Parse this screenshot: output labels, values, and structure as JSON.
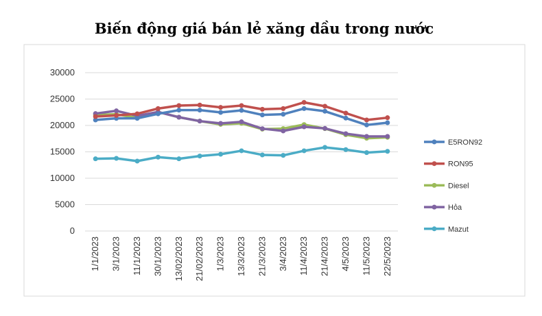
{
  "chart_data": {
    "type": "line",
    "title": "Biến động giá bán lẻ xăng dầu trong nước",
    "xlabel": "",
    "ylabel": "",
    "ylim": [
      0,
      30000
    ],
    "yticks": [
      0,
      5000,
      10000,
      15000,
      20000,
      25000,
      30000
    ],
    "grid": true,
    "legend_position": "right",
    "categories": [
      "1/1/2023",
      "3/1/2023",
      "11/1/2023",
      "30/1/2023",
      "13/02/2023",
      "21/02/2023",
      "1/3/2023",
      "13/3/2023",
      "21/3/2023",
      "3/4/2023",
      "11/4/2023",
      "21/4/2023",
      "4/5/2023",
      "11/5/2023",
      "22/5/2023"
    ],
    "series": [
      {
        "name": "E5RON92",
        "color": "#4f81bd",
        "values": [
          21040,
          21340,
          21340,
          22210,
          22900,
          22900,
          22470,
          22860,
          21990,
          22120,
          23200,
          22690,
          21390,
          20090,
          20520
        ]
      },
      {
        "name": "RON95",
        "color": "#c0504d",
        "values": [
          21690,
          21900,
          22210,
          23200,
          23770,
          23860,
          23420,
          23770,
          23070,
          23200,
          24370,
          23640,
          22340,
          21040,
          21470
        ]
      },
      {
        "name": "Diesel",
        "color": "#9bbb59",
        "values": [
          21990,
          22120,
          21430,
          22550,
          21560,
          20820,
          20200,
          20400,
          19300,
          19400,
          20170,
          19400,
          18240,
          17570,
          17750
        ]
      },
      {
        "name": "Hỏa",
        "color": "#8064a2",
        "values": [
          22250,
          22770,
          21820,
          22550,
          21560,
          20820,
          20390,
          20690,
          19390,
          18960,
          19740,
          19440,
          18440,
          17920,
          17920
        ]
      },
      {
        "name": "Mazut",
        "color": "#4bacc6",
        "values": [
          13680,
          13770,
          13250,
          13990,
          13680,
          14200,
          14550,
          15200,
          14420,
          14330,
          15200,
          15840,
          15420,
          14850,
          15100
        ]
      }
    ]
  }
}
